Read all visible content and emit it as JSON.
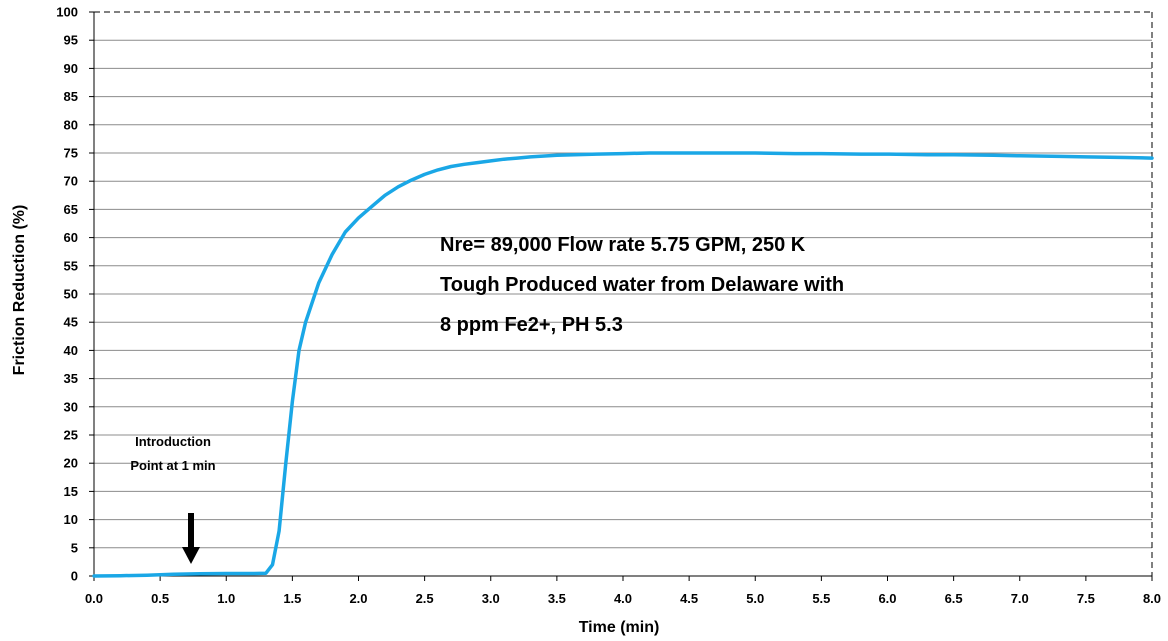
{
  "chart_data": {
    "type": "line",
    "title": "",
    "xlabel": "Time (min)",
    "ylabel": "Friction Reduction (%)",
    "xlim": [
      0,
      8
    ],
    "ylim": [
      0,
      100
    ],
    "x_ticks": [
      "0.0",
      "0.5",
      "1.0",
      "1.5",
      "2.0",
      "2.5",
      "3.0",
      "3.5",
      "4.0",
      "4.5",
      "5.0",
      "5.5",
      "6.0",
      "6.5",
      "7.0",
      "7.5",
      "8.0"
    ],
    "y_ticks": [
      "0",
      "5",
      "10",
      "15",
      "20",
      "25",
      "30",
      "35",
      "40",
      "45",
      "50",
      "55",
      "60",
      "65",
      "70",
      "75",
      "80",
      "85",
      "90",
      "95",
      "100"
    ],
    "grid": true,
    "series": [
      {
        "color": "#1aa7e6",
        "x": [
          0.0,
          0.2,
          0.4,
          0.6,
          0.8,
          1.0,
          1.2,
          1.3,
          1.35,
          1.4,
          1.45,
          1.5,
          1.55,
          1.6,
          1.7,
          1.8,
          1.9,
          2.0,
          2.1,
          2.2,
          2.3,
          2.4,
          2.5,
          2.6,
          2.7,
          2.8,
          2.9,
          3.0,
          3.1,
          3.2,
          3.3,
          3.5,
          3.8,
          4.0,
          4.2,
          4.5,
          4.8,
          5.0,
          5.3,
          5.5,
          5.8,
          6.0,
          6.3,
          6.5,
          6.8,
          7.0,
          7.3,
          7.5,
          7.8,
          8.0
        ],
        "values": [
          0.0,
          0.05,
          0.15,
          0.3,
          0.4,
          0.45,
          0.45,
          0.5,
          2.0,
          8.0,
          20.0,
          31.0,
          40.0,
          45.0,
          52.0,
          57.0,
          61.0,
          63.5,
          65.5,
          67.5,
          69.0,
          70.2,
          71.2,
          72.0,
          72.6,
          73.0,
          73.3,
          73.6,
          73.9,
          74.1,
          74.3,
          74.6,
          74.8,
          74.9,
          75.0,
          75.0,
          75.0,
          75.0,
          74.9,
          74.9,
          74.8,
          74.8,
          74.7,
          74.7,
          74.6,
          74.5,
          74.4,
          74.3,
          74.2,
          74.1
        ]
      }
    ],
    "annotations": {
      "line1": "Nre= 89,000 Flow rate 5.75 GPM, 250 K",
      "line2": "Tough Produced water from Delaware with",
      "line3": "8 ppm Fe2+, PH 5.3",
      "intro_line1": "Introduction",
      "intro_line2": "Point at 1 min"
    }
  }
}
